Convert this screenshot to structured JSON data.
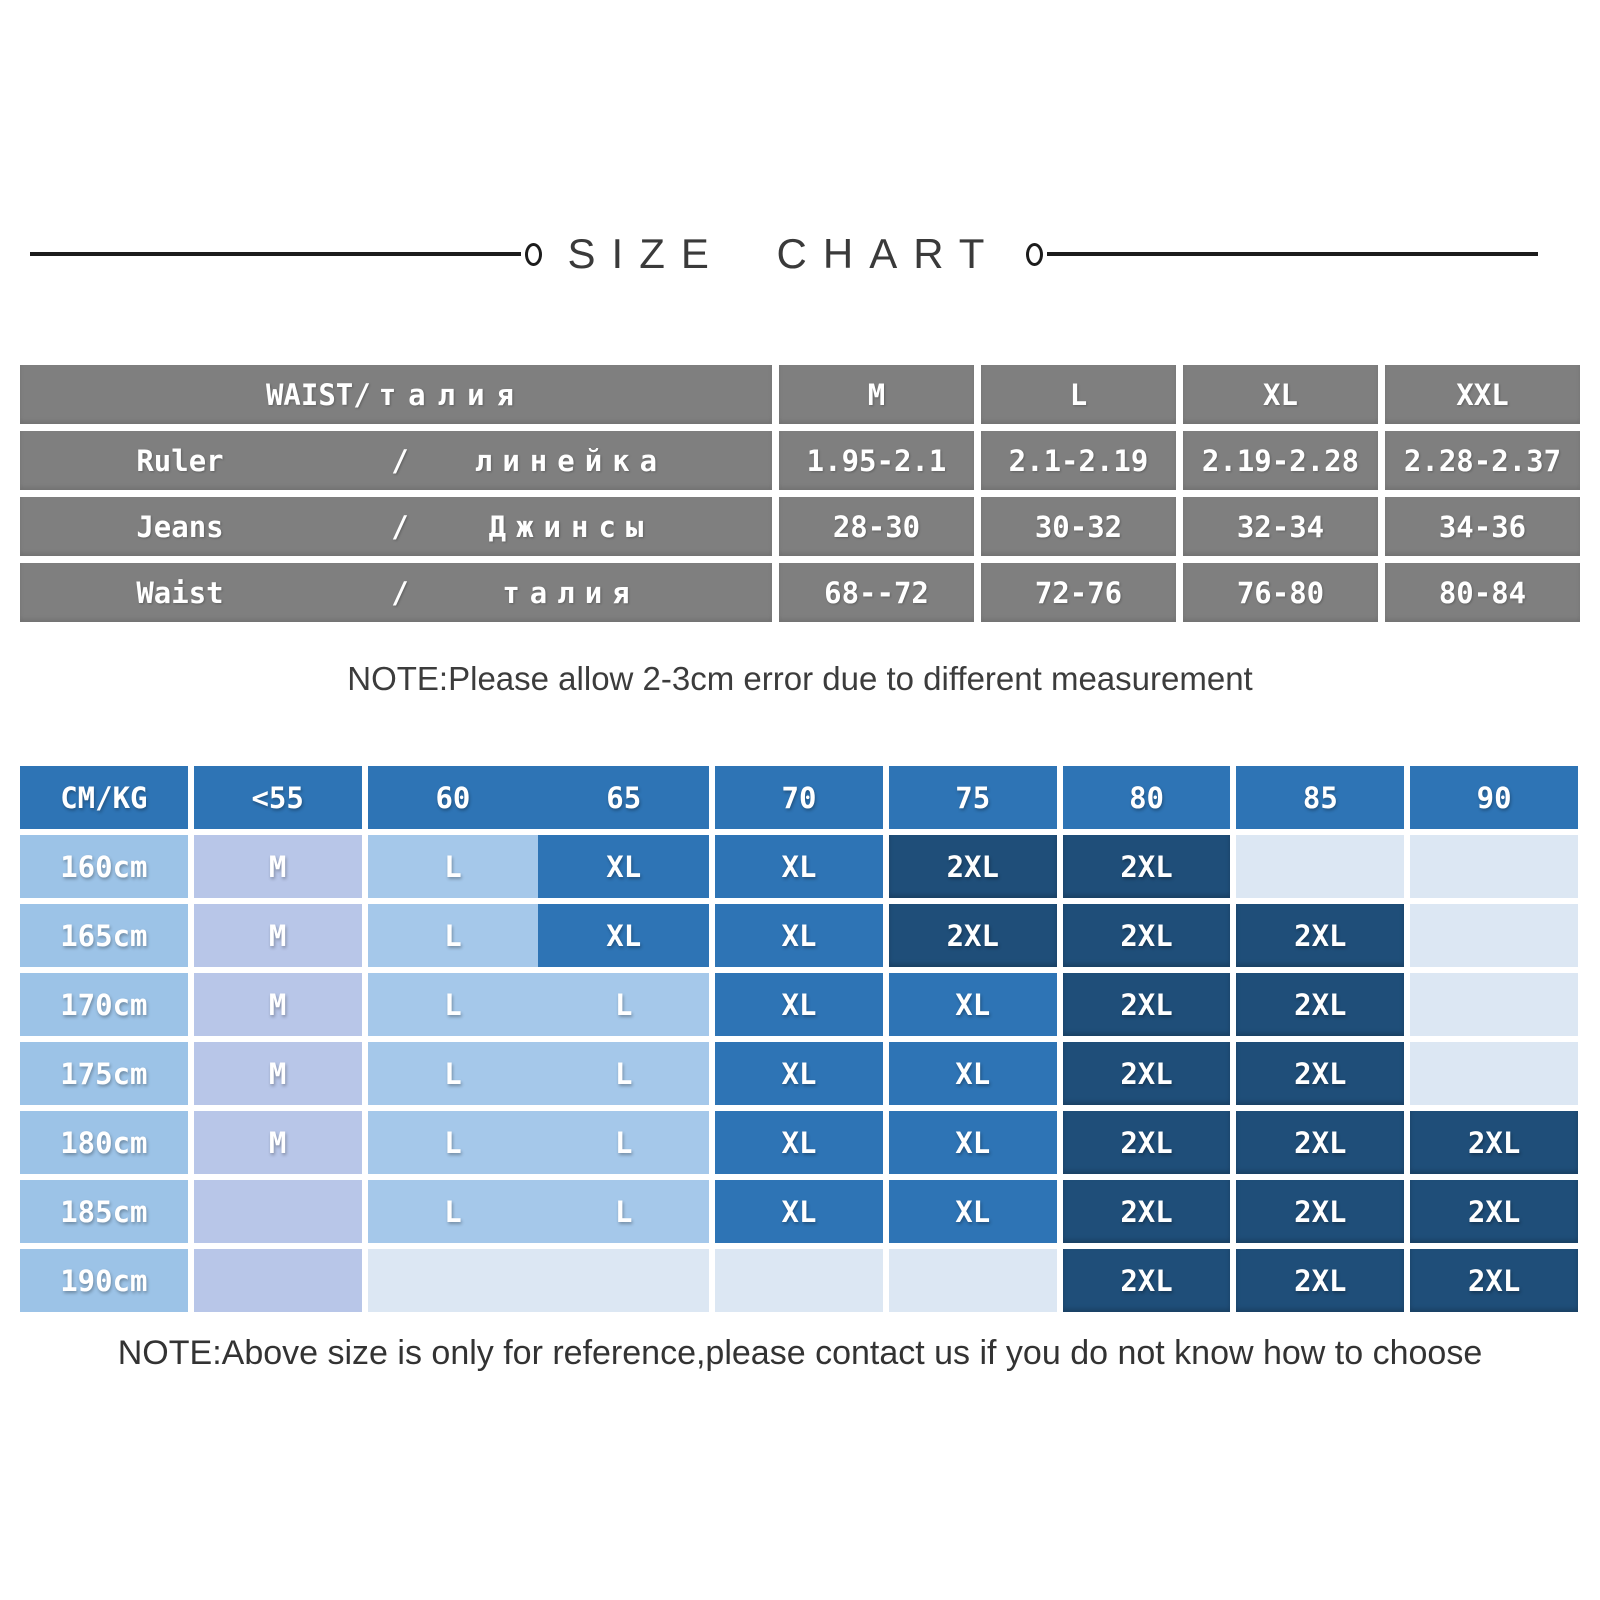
{
  "title": "SIZE CHART",
  "note1": "NOTE:Please allow 2-3cm error due to different measurement",
  "note2": "NOTE:Above size is only for reference,please contact us if you do not know how to choose",
  "colors": {
    "table_gray": "#7f7f7f",
    "header_blue": "#2e74b5",
    "label_blue": "#9cc3e7",
    "m_lavender": "#b8c6e8",
    "l_light_blue": "#a5c8ea",
    "xl_blue": "#2e74b5",
    "xxl_navy": "#1f4e79",
    "empty_pale": "#dce7f3",
    "divider_black": "#1c1c1c",
    "note_text": "#3c3c3c"
  },
  "waist_table": {
    "header": {
      "label_en": "WAIST/",
      "label_ru": "талия",
      "sizes": [
        "M",
        "L",
        "XL",
        "XXL"
      ]
    },
    "rows": [
      {
        "en": "Ruler",
        "slash": "/",
        "ru": "линейка",
        "values": [
          "1.95-2.1",
          "2.1-2.19",
          "2.19-2.28",
          "2.28-2.37"
        ]
      },
      {
        "en": "Jeans",
        "slash": "/",
        "ru": "Джинсы",
        "values": [
          "28-30",
          "30-32",
          "32-34",
          "34-36"
        ]
      },
      {
        "en": "Waist",
        "slash": "/",
        "ru": "талия",
        "values": [
          "68--72",
          "72-76",
          "76-80",
          "80-84"
        ]
      }
    ]
  },
  "size_grid": {
    "rows": [
      {
        "cells": [
          {
            "t": "CM/KG",
            "s": "hd"
          },
          {
            "t": "<55",
            "s": "hd"
          },
          {
            "t": "60",
            "s": "hd"
          },
          {
            "t": "65",
            "s": "hd"
          },
          {
            "t": "70",
            "s": "hd"
          },
          {
            "t": "75",
            "s": "hd"
          },
          {
            "t": "80",
            "s": "hd"
          },
          {
            "t": "85",
            "s": "hd"
          },
          {
            "t": "90",
            "s": "hd"
          }
        ]
      },
      {
        "cells": [
          {
            "t": "160cm",
            "s": "lb"
          },
          {
            "t": "M",
            "s": "m"
          },
          {
            "t": "L",
            "s": "l"
          },
          {
            "t": "XL",
            "s": "x"
          },
          {
            "t": "XL",
            "s": "x"
          },
          {
            "t": "2XL",
            "s": "n"
          },
          {
            "t": "2XL",
            "s": "n"
          },
          {
            "t": "",
            "s": "e"
          },
          {
            "t": "",
            "s": "e"
          }
        ]
      },
      {
        "cells": [
          {
            "t": "165cm",
            "s": "lb"
          },
          {
            "t": "M",
            "s": "m"
          },
          {
            "t": "L",
            "s": "l"
          },
          {
            "t": "XL",
            "s": "x"
          },
          {
            "t": "XL",
            "s": "x"
          },
          {
            "t": "2XL",
            "s": "n"
          },
          {
            "t": "2XL",
            "s": "n"
          },
          {
            "t": "2XL",
            "s": "n"
          },
          {
            "t": "",
            "s": "e"
          }
        ]
      },
      {
        "cells": [
          {
            "t": "170cm",
            "s": "lb"
          },
          {
            "t": "M",
            "s": "m"
          },
          {
            "t": "L",
            "s": "l"
          },
          {
            "t": "L",
            "s": "l"
          },
          {
            "t": "XL",
            "s": "x"
          },
          {
            "t": "XL",
            "s": "x"
          },
          {
            "t": "2XL",
            "s": "n"
          },
          {
            "t": "2XL",
            "s": "n"
          },
          {
            "t": "",
            "s": "e"
          }
        ]
      },
      {
        "cells": [
          {
            "t": "175cm",
            "s": "lb"
          },
          {
            "t": "M",
            "s": "m"
          },
          {
            "t": "L",
            "s": "l"
          },
          {
            "t": "L",
            "s": "l"
          },
          {
            "t": "XL",
            "s": "x"
          },
          {
            "t": "XL",
            "s": "x"
          },
          {
            "t": "2XL",
            "s": "n"
          },
          {
            "t": "2XL",
            "s": "n"
          },
          {
            "t": "",
            "s": "e"
          }
        ]
      },
      {
        "cells": [
          {
            "t": "180cm",
            "s": "lb"
          },
          {
            "t": "M",
            "s": "m"
          },
          {
            "t": "L",
            "s": "l"
          },
          {
            "t": "L",
            "s": "l"
          },
          {
            "t": "XL",
            "s": "x"
          },
          {
            "t": "XL",
            "s": "x"
          },
          {
            "t": "2XL",
            "s": "n"
          },
          {
            "t": "2XL",
            "s": "n"
          },
          {
            "t": "2XL",
            "s": "n"
          }
        ]
      },
      {
        "cells": [
          {
            "t": "185cm",
            "s": "lb"
          },
          {
            "t": "",
            "s": "m"
          },
          {
            "t": "L",
            "s": "l"
          },
          {
            "t": "L",
            "s": "l"
          },
          {
            "t": "XL",
            "s": "x"
          },
          {
            "t": "XL",
            "s": "x"
          },
          {
            "t": "2XL",
            "s": "n"
          },
          {
            "t": "2XL",
            "s": "n"
          },
          {
            "t": "2XL",
            "s": "n"
          }
        ]
      },
      {
        "cells": [
          {
            "t": "190cm",
            "s": "lb"
          },
          {
            "t": "",
            "s": "m"
          },
          {
            "t": "",
            "s": "e"
          },
          {
            "t": "",
            "s": "e"
          },
          {
            "t": "",
            "s": "e"
          },
          {
            "t": "",
            "s": "e"
          },
          {
            "t": "2XL",
            "s": "n"
          },
          {
            "t": "2XL",
            "s": "n"
          },
          {
            "t": "2XL",
            "s": "n"
          }
        ]
      }
    ]
  },
  "chart_data": [
    {
      "type": "table",
      "title": "WAIST/талия",
      "columns": [
        "",
        "M",
        "L",
        "XL",
        "XXL"
      ],
      "rows": [
        [
          "Ruler / линейка",
          "1.95-2.1",
          "2.1-2.19",
          "2.19-2.28",
          "2.28-2.37"
        ],
        [
          "Jeans / Джинсы",
          "28-30",
          "30-32",
          "32-34",
          "34-36"
        ],
        [
          "Waist / талия",
          "68--72",
          "72-76",
          "76-80",
          "80-84"
        ]
      ]
    },
    {
      "type": "table",
      "title": "Height vs weight size grid",
      "columns": [
        "CM/KG",
        "<55",
        "60",
        "65",
        "70",
        "75",
        "80",
        "85",
        "90"
      ],
      "rows": [
        [
          "160cm",
          "M",
          "L",
          "XL",
          "XL",
          "2XL",
          "2XL",
          "",
          ""
        ],
        [
          "165cm",
          "M",
          "L",
          "XL",
          "XL",
          "2XL",
          "2XL",
          "2XL",
          ""
        ],
        [
          "170cm",
          "M",
          "L",
          "L",
          "XL",
          "XL",
          "2XL",
          "2XL",
          ""
        ],
        [
          "175cm",
          "M",
          "L",
          "L",
          "XL",
          "XL",
          "2XL",
          "2XL",
          ""
        ],
        [
          "180cm",
          "M",
          "L",
          "L",
          "XL",
          "XL",
          "2XL",
          "2XL",
          "2XL"
        ],
        [
          "185cm",
          "",
          "L",
          "L",
          "XL",
          "XL",
          "2XL",
          "2XL",
          "2XL"
        ],
        [
          "190cm",
          "",
          "",
          "",
          "",
          "",
          "2XL",
          "2XL",
          "2XL"
        ]
      ]
    }
  ]
}
